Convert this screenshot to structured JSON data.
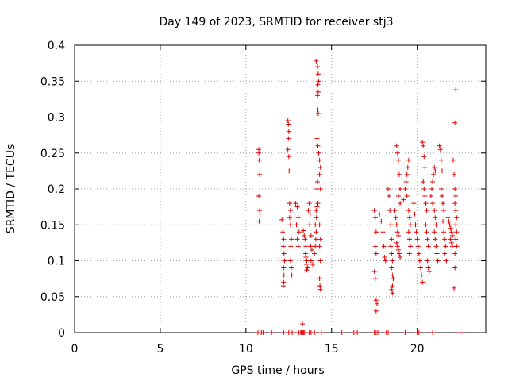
{
  "chart_data": {
    "type": "scatter",
    "title": "Day 149 of 2023, SRMTID for receiver stj3",
    "xlabel": "GPS time / hours",
    "ylabel": "SRMTID / TECUs",
    "xlim": [
      0,
      24
    ],
    "ylim": [
      0,
      0.4
    ],
    "x_ticks": [
      0,
      5,
      10,
      15,
      20
    ],
    "x_tick_labels": [
      "0",
      "5",
      "10",
      "15",
      "20"
    ],
    "y_ticks": [
      0,
      0.05,
      0.1,
      0.15,
      0.2,
      0.25,
      0.3,
      0.35,
      0.4
    ],
    "y_tick_labels": [
      "0",
      "0.05",
      "0.1",
      "0.15",
      "0.2",
      "0.25",
      "0.3",
      "0.35",
      "0.4"
    ],
    "grid": true,
    "marker": "+",
    "color": "#e00000",
    "series": [
      {
        "name": "stj3",
        "points": [
          [
            10.75,
            0.255
          ],
          [
            10.75,
            0.25
          ],
          [
            10.78,
            0.24
          ],
          [
            10.8,
            0.22
          ],
          [
            10.75,
            0.19
          ],
          [
            10.8,
            0.17
          ],
          [
            10.82,
            0.165
          ],
          [
            10.78,
            0.155
          ],
          [
            12.1,
            0.157
          ],
          [
            12.15,
            0.14
          ],
          [
            12.2,
            0.13
          ],
          [
            12.18,
            0.12
          ],
          [
            12.22,
            0.11
          ],
          [
            12.25,
            0.1
          ],
          [
            12.2,
            0.09
          ],
          [
            12.22,
            0.08
          ],
          [
            12.2,
            0.07
          ],
          [
            12.18,
            0.065
          ],
          [
            12.45,
            0.295
          ],
          [
            12.48,
            0.29
          ],
          [
            12.5,
            0.28
          ],
          [
            12.48,
            0.27
          ],
          [
            12.45,
            0.255
          ],
          [
            12.5,
            0.245
          ],
          [
            12.52,
            0.225
          ],
          [
            12.55,
            0.18
          ],
          [
            12.6,
            0.17
          ],
          [
            12.55,
            0.16
          ],
          [
            12.6,
            0.15
          ],
          [
            12.65,
            0.13
          ],
          [
            12.62,
            0.12
          ],
          [
            12.6,
            0.1
          ],
          [
            12.65,
            0.09
          ],
          [
            12.68,
            0.08
          ],
          [
            12.9,
            0.18
          ],
          [
            13.0,
            0.175
          ],
          [
            13.05,
            0.16
          ],
          [
            12.95,
            0.15
          ],
          [
            13.1,
            0.14
          ],
          [
            13.0,
            0.13
          ],
          [
            13.05,
            0.12
          ],
          [
            13.35,
            0.142
          ],
          [
            13.4,
            0.135
          ],
          [
            13.45,
            0.13
          ],
          [
            13.5,
            0.12
          ],
          [
            13.48,
            0.11
          ],
          [
            13.5,
            0.105
          ],
          [
            13.55,
            0.1
          ],
          [
            13.52,
            0.095
          ],
          [
            13.6,
            0.09
          ],
          [
            13.55,
            0.087
          ],
          [
            13.65,
            0.17
          ],
          [
            13.7,
            0.18
          ],
          [
            13.75,
            0.165
          ],
          [
            13.72,
            0.15
          ],
          [
            13.8,
            0.135
          ],
          [
            13.78,
            0.12
          ],
          [
            13.85,
            0.115
          ],
          [
            13.8,
            0.1
          ],
          [
            13.9,
            0.095
          ],
          [
            14.0,
            0.11
          ],
          [
            14.05,
            0.12
          ],
          [
            14.08,
            0.13
          ],
          [
            14.1,
            0.14
          ],
          [
            14.05,
            0.15
          ],
          [
            14.12,
            0.16
          ],
          [
            14.1,
            0.17
          ],
          [
            14.15,
            0.175
          ],
          [
            14.2,
            0.18
          ],
          [
            14.15,
            0.2
          ],
          [
            14.18,
            0.21
          ],
          [
            14.1,
            0.378
          ],
          [
            14.18,
            0.37
          ],
          [
            14.22,
            0.36
          ],
          [
            14.25,
            0.35
          ],
          [
            14.2,
            0.345
          ],
          [
            14.22,
            0.335
          ],
          [
            14.18,
            0.33
          ],
          [
            14.2,
            0.31
          ],
          [
            14.22,
            0.305
          ],
          [
            14.15,
            0.27
          ],
          [
            14.2,
            0.26
          ],
          [
            14.25,
            0.25
          ],
          [
            14.3,
            0.24
          ],
          [
            14.35,
            0.23
          ],
          [
            14.3,
            0.22
          ],
          [
            14.35,
            0.2
          ],
          [
            14.3,
            0.15
          ],
          [
            14.35,
            0.13
          ],
          [
            14.3,
            0.12
          ],
          [
            14.35,
            0.1
          ],
          [
            14.3,
            0.075
          ],
          [
            14.32,
            0.065
          ],
          [
            14.35,
            0.06
          ],
          [
            13.3,
            0.012
          ],
          [
            17.5,
            0.17
          ],
          [
            17.55,
            0.16
          ],
          [
            17.6,
            0.14
          ],
          [
            17.55,
            0.12
          ],
          [
            17.6,
            0.11
          ],
          [
            17.5,
            0.085
          ],
          [
            17.55,
            0.075
          ],
          [
            17.6,
            0.045
          ],
          [
            17.65,
            0.04
          ],
          [
            17.6,
            0.03
          ],
          [
            17.8,
            0.165
          ],
          [
            17.9,
            0.155
          ],
          [
            18.0,
            0.14
          ],
          [
            18.05,
            0.12
          ],
          [
            18.1,
            0.105
          ],
          [
            18.15,
            0.1
          ],
          [
            18.3,
            0.2
          ],
          [
            18.35,
            0.19
          ],
          [
            18.4,
            0.17
          ],
          [
            18.45,
            0.15
          ],
          [
            18.5,
            0.13
          ],
          [
            18.45,
            0.12
          ],
          [
            18.5,
            0.11
          ],
          [
            18.55,
            0.1
          ],
          [
            18.5,
            0.09
          ],
          [
            18.55,
            0.08
          ],
          [
            18.6,
            0.075
          ],
          [
            18.55,
            0.065
          ],
          [
            18.5,
            0.06
          ],
          [
            18.55,
            0.055
          ],
          [
            18.7,
            0.17
          ],
          [
            18.75,
            0.16
          ],
          [
            18.8,
            0.15
          ],
          [
            18.85,
            0.14
          ],
          [
            18.9,
            0.135
          ],
          [
            18.8,
            0.125
          ],
          [
            18.85,
            0.12
          ],
          [
            18.9,
            0.115
          ],
          [
            18.95,
            0.11
          ],
          [
            19.0,
            0.105
          ],
          [
            18.8,
            0.26
          ],
          [
            18.85,
            0.25
          ],
          [
            18.9,
            0.24
          ],
          [
            18.95,
            0.22
          ],
          [
            19.0,
            0.2
          ],
          [
            18.9,
            0.19
          ],
          [
            19.0,
            0.18
          ],
          [
            19.2,
            0.185
          ],
          [
            19.3,
            0.2
          ],
          [
            19.35,
            0.21
          ],
          [
            19.4,
            0.22
          ],
          [
            19.45,
            0.23
          ],
          [
            19.5,
            0.24
          ],
          [
            19.4,
            0.19
          ],
          [
            19.5,
            0.17
          ],
          [
            19.55,
            0.16
          ],
          [
            19.6,
            0.15
          ],
          [
            19.5,
            0.14
          ],
          [
            19.55,
            0.13
          ],
          [
            19.6,
            0.12
          ],
          [
            19.55,
            0.11
          ],
          [
            19.8,
            0.18
          ],
          [
            19.85,
            0.165
          ],
          [
            19.9,
            0.15
          ],
          [
            19.95,
            0.14
          ],
          [
            20.0,
            0.13
          ],
          [
            20.05,
            0.12
          ],
          [
            20.1,
            0.11
          ],
          [
            20.15,
            0.1
          ],
          [
            20.2,
            0.09
          ],
          [
            20.25,
            0.08
          ],
          [
            20.3,
            0.07
          ],
          [
            20.3,
            0.265
          ],
          [
            20.35,
            0.26
          ],
          [
            20.4,
            0.245
          ],
          [
            20.45,
            0.23
          ],
          [
            20.35,
            0.21
          ],
          [
            20.4,
            0.2
          ],
          [
            20.45,
            0.19
          ],
          [
            20.5,
            0.18
          ],
          [
            20.55,
            0.17
          ],
          [
            20.5,
            0.15
          ],
          [
            20.55,
            0.14
          ],
          [
            20.6,
            0.13
          ],
          [
            20.65,
            0.12
          ],
          [
            20.6,
            0.1
          ],
          [
            20.65,
            0.09
          ],
          [
            20.7,
            0.085
          ],
          [
            20.8,
            0.19
          ],
          [
            20.85,
            0.2
          ],
          [
            20.9,
            0.21
          ],
          [
            20.95,
            0.22
          ],
          [
            21.0,
            0.23
          ],
          [
            21.05,
            0.225
          ],
          [
            20.9,
            0.18
          ],
          [
            21.0,
            0.17
          ],
          [
            21.05,
            0.16
          ],
          [
            21.1,
            0.15
          ],
          [
            21.0,
            0.14
          ],
          [
            21.05,
            0.13
          ],
          [
            21.1,
            0.12
          ],
          [
            21.15,
            0.11
          ],
          [
            21.2,
            0.1
          ],
          [
            21.3,
            0.26
          ],
          [
            21.35,
            0.255
          ],
          [
            21.4,
            0.24
          ],
          [
            21.45,
            0.225
          ],
          [
            21.4,
            0.2
          ],
          [
            21.45,
            0.19
          ],
          [
            21.5,
            0.18
          ],
          [
            21.55,
            0.17
          ],
          [
            21.5,
            0.155
          ],
          [
            21.55,
            0.14
          ],
          [
            21.6,
            0.13
          ],
          [
            21.65,
            0.12
          ],
          [
            21.6,
            0.11
          ],
          [
            21.7,
            0.1
          ],
          [
            21.8,
            0.16
          ],
          [
            21.85,
            0.155
          ],
          [
            21.9,
            0.15
          ],
          [
            21.95,
            0.145
          ],
          [
            22.0,
            0.14
          ],
          [
            22.05,
            0.135
          ],
          [
            21.95,
            0.13
          ],
          [
            22.0,
            0.125
          ],
          [
            22.05,
            0.12
          ],
          [
            22.1,
            0.24
          ],
          [
            22.15,
            0.22
          ],
          [
            22.2,
            0.2
          ],
          [
            22.25,
            0.19
          ],
          [
            22.2,
            0.18
          ],
          [
            22.25,
            0.17
          ],
          [
            22.3,
            0.16
          ],
          [
            22.25,
            0.15
          ],
          [
            22.3,
            0.14
          ],
          [
            22.25,
            0.13
          ],
          [
            22.3,
            0.12
          ],
          [
            22.2,
            0.11
          ],
          [
            22.2,
            0.09
          ],
          [
            22.15,
            0.062
          ],
          [
            22.25,
            0.338
          ],
          [
            22.2,
            0.292
          ],
          [
            10.7,
            0
          ],
          [
            10.9,
            0
          ],
          [
            11.0,
            0
          ],
          [
            11.5,
            0
          ],
          [
            12.2,
            0
          ],
          [
            12.5,
            0
          ],
          [
            12.7,
            0
          ],
          [
            13.1,
            0
          ],
          [
            13.2,
            0
          ],
          [
            13.25,
            0
          ],
          [
            13.3,
            0
          ],
          [
            13.35,
            0
          ],
          [
            13.4,
            0
          ],
          [
            13.5,
            0
          ],
          [
            13.7,
            0
          ],
          [
            13.8,
            0
          ],
          [
            14.0,
            0
          ],
          [
            14.4,
            0
          ],
          [
            15.6,
            0
          ],
          [
            16.3,
            0
          ],
          [
            16.5,
            0
          ],
          [
            17.5,
            0
          ],
          [
            17.6,
            0
          ],
          [
            17.7,
            0
          ],
          [
            18.2,
            0
          ],
          [
            18.3,
            0
          ],
          [
            19.3,
            0
          ],
          [
            20.0,
            0
          ],
          [
            20.1,
            0
          ],
          [
            20.9,
            0
          ],
          [
            22.5,
            0
          ]
        ]
      }
    ]
  }
}
